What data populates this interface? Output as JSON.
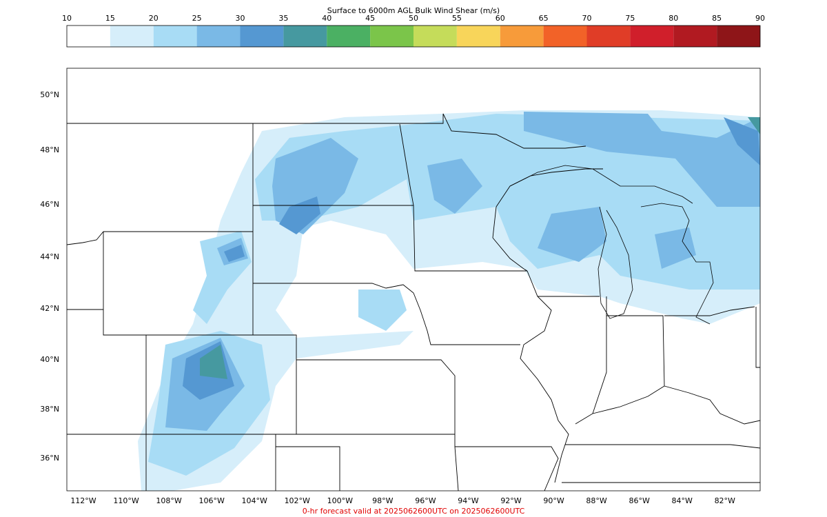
{
  "colorbar": {
    "title": "Surface to 6000m AGL Bulk Wind Shear (m/s)",
    "ticks": [
      10,
      15,
      20,
      25,
      30,
      35,
      40,
      45,
      50,
      55,
      60,
      65,
      70,
      75,
      80,
      85,
      90
    ],
    "colors": [
      "#ffffff",
      "#d6eefa",
      "#a8dcf5",
      "#7ab9e6",
      "#5598d2",
      "#4699a0",
      "#4bb063",
      "#7bc54a",
      "#c5dc5a",
      "#f8d55a",
      "#f79b3a",
      "#f26228",
      "#e03d27",
      "#d01f2b",
      "#b11a21",
      "#8e1518"
    ]
  },
  "map": {
    "lat_labels": [
      "50°N",
      "48°N",
      "46°N",
      "44°N",
      "42°N",
      "40°N",
      "38°N",
      "36°N"
    ],
    "lon_labels": [
      "112°W",
      "110°W",
      "108°W",
      "106°W",
      "104°W",
      "102°W",
      "100°W",
      "98°W",
      "96°W",
      "94°W",
      "92°W",
      "90°W",
      "88°W",
      "86°W",
      "84°W",
      "82°W"
    ]
  },
  "footer": "0-hr forecast valid at 2025062600UTC on 2025062600UTC"
}
